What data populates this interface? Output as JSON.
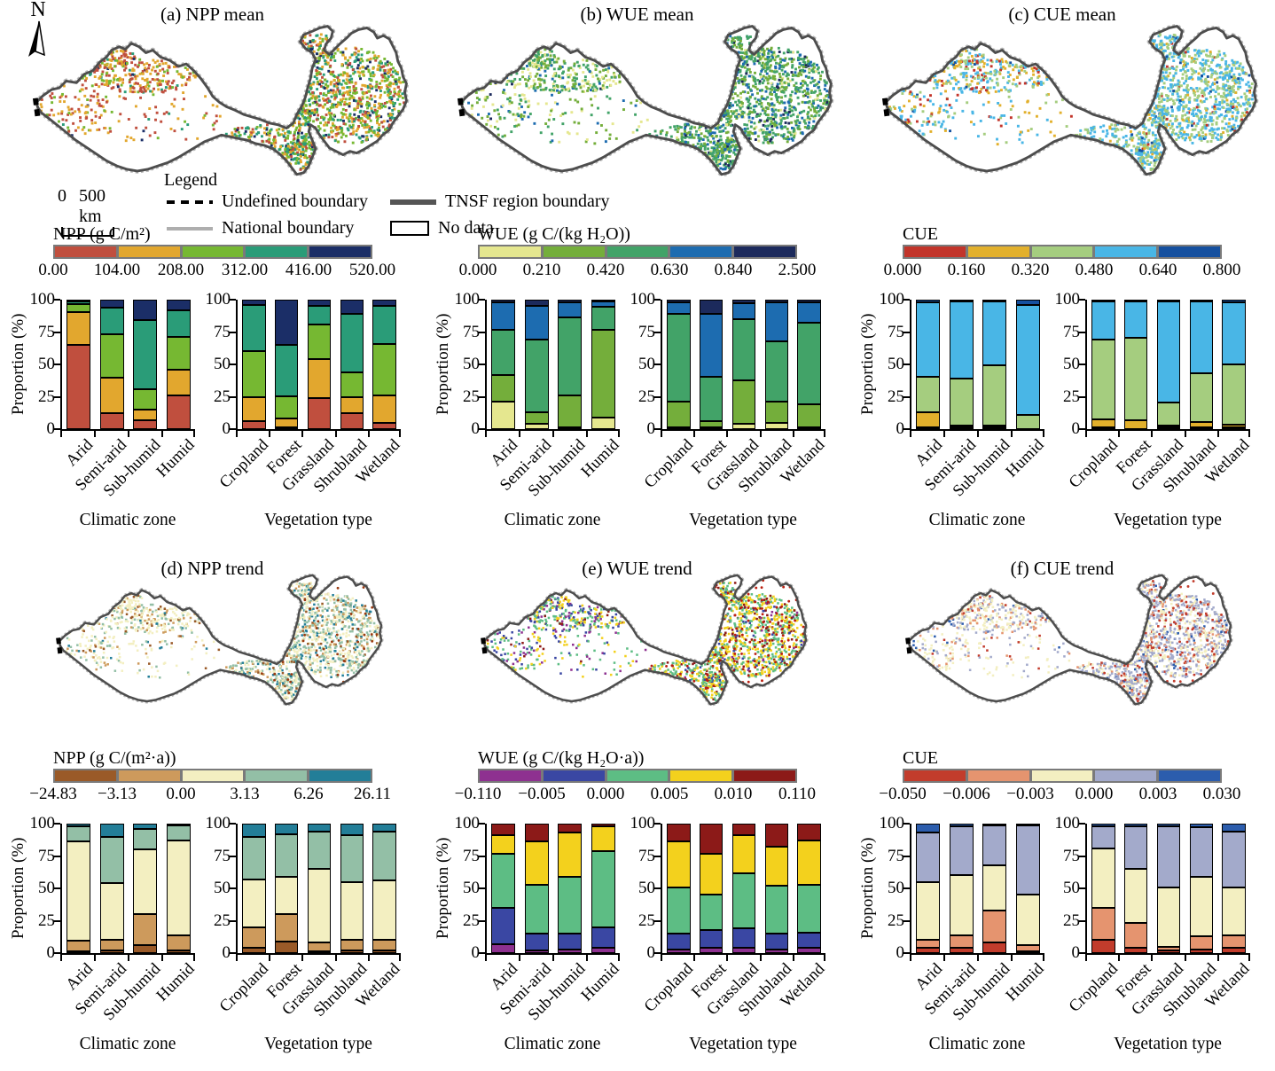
{
  "figure": {
    "north_label": "N",
    "scale_bar": {
      "start": "0",
      "end": "500 km"
    },
    "legend": {
      "title": "Legend",
      "items": [
        {
          "id": "undefined-boundary",
          "label": "Undefined boundary"
        },
        {
          "id": "tnsf-region-boundary",
          "label": "TNSF region boundary"
        },
        {
          "id": "national-boundary",
          "label": "National boundary"
        },
        {
          "id": "no-data",
          "label": "No data"
        }
      ]
    },
    "y_axis": {
      "label": "Proportion (%)",
      "ticks": [
        "100",
        "75",
        "50",
        "25",
        "0"
      ]
    }
  },
  "chart_data": [
    {
      "panel": "a",
      "title": "(a) NPP mean",
      "type": "stacked-bar",
      "colorbar": {
        "title": "NPP (g C/m²)",
        "colors": [
          "#c04f3e",
          "#e2a72e",
          "#76b832",
          "#2a9c78",
          "#1b2e67"
        ],
        "ticks": [
          "0.00",
          "104.00",
          "208.00",
          "312.00",
          "416.00",
          "520.00"
        ]
      },
      "charts": [
        {
          "xlabel": "Climatic zone",
          "ylabel": "Proportion (%)",
          "ylim": [
            0,
            100
          ],
          "categories": [
            "Arid",
            "Semi-arid",
            "Sub-humid",
            "Humid"
          ],
          "values": [
            [
              65,
              26,
              6,
              2,
              1
            ],
            [
              12,
              28,
              33,
              21,
              6
            ],
            [
              7,
              8,
              16,
              53,
              16
            ],
            [
              26,
              20,
              25,
              21,
              8
            ]
          ]
        },
        {
          "xlabel": "Vegetation type",
          "ylabel": "",
          "ylim": [
            0,
            100
          ],
          "categories": [
            "Cropland",
            "Forest",
            "Grassland",
            "Shrubland",
            "Wetland"
          ],
          "values": [
            [
              6,
              19,
              35,
              36,
              4
            ],
            [
              1,
              7,
              17,
              40,
              35
            ],
            [
              24,
              30,
              27,
              14,
              5
            ],
            [
              12,
              13,
              19,
              45,
              11
            ],
            [
              5,
              21,
              40,
              29,
              5
            ]
          ]
        }
      ]
    },
    {
      "panel": "b",
      "title": "(b) WUE mean",
      "type": "stacked-bar",
      "colorbar": {
        "title": "WUE (g C/(kg H₂O))",
        "colors": [
          "#e5e78f",
          "#74ae3b",
          "#42a368",
          "#1d6cb0",
          "#1c2a5c"
        ],
        "ticks": [
          "0.000",
          "0.210",
          "0.420",
          "0.630",
          "0.840",
          "2.500"
        ]
      },
      "charts": [
        {
          "xlabel": "Climatic zone",
          "ylabel": "Proportion (%)",
          "ylim": [
            0,
            100
          ],
          "categories": [
            "Arid",
            "Semi-arid",
            "Sub-humid",
            "Humid"
          ],
          "values": [
            [
              21,
              21,
              35,
              21,
              2
            ],
            [
              4,
              9,
              56,
              26,
              5
            ],
            [
              1,
              25,
              60,
              12,
              2
            ],
            [
              9,
              68,
              18,
              4,
              1
            ]
          ]
        },
        {
          "xlabel": "Vegetation type",
          "ylabel": "",
          "ylim": [
            0,
            100
          ],
          "categories": [
            "Cropland",
            "Forest",
            "Grassland",
            "Shrubland",
            "Wetland"
          ],
          "values": [
            [
              1,
              20,
              68,
              9,
              2
            ],
            [
              1,
              5,
              34,
              49,
              11
            ],
            [
              4,
              34,
              47,
              12,
              3
            ],
            [
              5,
              16,
              47,
              30,
              2
            ],
            [
              1,
              18,
              63,
              16,
              2
            ]
          ]
        }
      ]
    },
    {
      "panel": "c",
      "title": "(c) CUE mean",
      "type": "stacked-bar",
      "colorbar": {
        "title": "CUE",
        "colors": [
          "#c2342a",
          "#e2b02c",
          "#a5cd7f",
          "#49b6e6",
          "#15509f"
        ],
        "ticks": [
          "0.000",
          "0.160",
          "0.320",
          "0.480",
          "0.640",
          "0.800"
        ]
      },
      "charts": [
        {
          "xlabel": "Climatic zone",
          "ylabel": "Proportion (%)",
          "ylim": [
            0,
            100
          ],
          "categories": [
            "Arid",
            "Semi-arid",
            "Sub-humid",
            "Humid"
          ],
          "values": [
            [
              1,
              12,
              27,
              58,
              2
            ],
            [
              1,
              1,
              37,
              60,
              1
            ],
            [
              1,
              1,
              47,
              50,
              1
            ],
            [
              0,
              0,
              11,
              85,
              4
            ]
          ]
        },
        {
          "xlabel": "Vegetation type",
          "ylabel": "",
          "ylim": [
            0,
            100
          ],
          "categories": [
            "Cropland",
            "Forest",
            "Grassland",
            "Shrubland",
            "Wetland"
          ],
          "values": [
            [
              1,
              6,
              62,
              30,
              1
            ],
            [
              0,
              7,
              64,
              28,
              1
            ],
            [
              1,
              1,
              18,
              79,
              1
            ],
            [
              1,
              4,
              38,
              56,
              1
            ],
            [
              1,
              2,
              47,
              48,
              2
            ]
          ]
        }
      ]
    },
    {
      "panel": "d",
      "title": "(d) NPP trend",
      "type": "stacked-bar",
      "colorbar": {
        "title": "NPP (g C/(m²·a))",
        "colors": [
          "#9a5a28",
          "#cd9a5c",
          "#f3efc1",
          "#93bfa6",
          "#237e98"
        ],
        "ticks": [
          "−24.83",
          "−3.13",
          "0.00",
          "3.13",
          "6.26",
          "26.11"
        ]
      },
      "charts": [
        {
          "xlabel": "Climatic zone",
          "ylabel": "Proportion (%)",
          "ylim": [
            0,
            100
          ],
          "categories": [
            "Arid",
            "Semi-arid",
            "Sub-humid",
            "Humid"
          ],
          "values": [
            [
              1,
              8,
              77,
              12,
              2
            ],
            [
              2,
              8,
              44,
              36,
              10
            ],
            [
              6,
              24,
              50,
              16,
              4
            ],
            [
              2,
              12,
              73,
              12,
              1
            ]
          ]
        },
        {
          "xlabel": "Vegetation type",
          "ylabel": "",
          "ylim": [
            0,
            100
          ],
          "categories": [
            "Cropland",
            "Forest",
            "Grassland",
            "Shrubland",
            "Wetland"
          ],
          "values": [
            [
              4,
              16,
              37,
              33,
              10
            ],
            [
              9,
              21,
              29,
              33,
              8
            ],
            [
              1,
              7,
              57,
              29,
              6
            ],
            [
              2,
              8,
              45,
              36,
              9
            ],
            [
              2,
              8,
              46,
              38,
              6
            ]
          ]
        }
      ]
    },
    {
      "panel": "e",
      "title": "(e) WUE trend",
      "type": "stacked-bar",
      "colorbar": {
        "title": "WUE (g C/(kg H₂O·a))",
        "colors": [
          "#8e3190",
          "#3a47a3",
          "#5dbd84",
          "#f3d11d",
          "#8c1a18"
        ],
        "ticks": [
          "−0.110",
          "−0.005",
          "0.000",
          "0.005",
          "0.010",
          "0.110"
        ]
      },
      "charts": [
        {
          "xlabel": "Climatic zone",
          "ylabel": "Proportion (%)",
          "ylim": [
            0,
            100
          ],
          "categories": [
            "Arid",
            "Semi-arid",
            "Sub-humid",
            "Humid"
          ],
          "values": [
            [
              7,
              28,
              42,
              14,
              9
            ],
            [
              2,
              13,
              38,
              33,
              14
            ],
            [
              3,
              12,
              44,
              34,
              7
            ],
            [
              4,
              16,
              59,
              19,
              2
            ]
          ]
        },
        {
          "xlabel": "Vegetation type",
          "ylabel": "",
          "ylim": [
            0,
            100
          ],
          "categories": [
            "Cropland",
            "Forest",
            "Grassland",
            "Shrubland",
            "Wetland"
          ],
          "values": [
            [
              3,
              12,
              36,
              35,
              14
            ],
            [
              4,
              14,
              27,
              32,
              23
            ],
            [
              4,
              15,
              43,
              29,
              9
            ],
            [
              3,
              12,
              37,
              30,
              18
            ],
            [
              4,
              12,
              37,
              34,
              13
            ]
          ]
        }
      ]
    },
    {
      "panel": "f",
      "title": "(f) CUE trend",
      "type": "stacked-bar",
      "colorbar": {
        "title": "CUE",
        "colors": [
          "#c23c2c",
          "#e5946f",
          "#f3efc1",
          "#a3aacb",
          "#2c5dad"
        ],
        "ticks": [
          "−0.050",
          "−0.006",
          "−0.003",
          "0.000",
          "0.003",
          "0.030"
        ]
      },
      "charts": [
        {
          "xlabel": "Climatic zone",
          "ylabel": "Proportion (%)",
          "ylim": [
            0,
            100
          ],
          "categories": [
            "Arid",
            "Semi-arid",
            "Sub-humid",
            "Humid"
          ],
          "values": [
            [
              4,
              6,
              45,
              38,
              7
            ],
            [
              4,
              10,
              46,
              38,
              2
            ],
            [
              8,
              25,
              35,
              31,
              1
            ],
            [
              1,
              5,
              39,
              54,
              1
            ]
          ]
        },
        {
          "xlabel": "Vegetation type",
          "ylabel": "",
          "ylim": [
            0,
            100
          ],
          "categories": [
            "Cropland",
            "Forest",
            "Grassland",
            "Shrubland",
            "Wetland"
          ],
          "values": [
            [
              10,
              25,
              46,
              17,
              2
            ],
            [
              4,
              19,
              42,
              33,
              2
            ],
            [
              2,
              3,
              46,
              47,
              2
            ],
            [
              3,
              10,
              46,
              38,
              3
            ],
            [
              4,
              10,
              37,
              43,
              6
            ]
          ]
        }
      ]
    }
  ]
}
